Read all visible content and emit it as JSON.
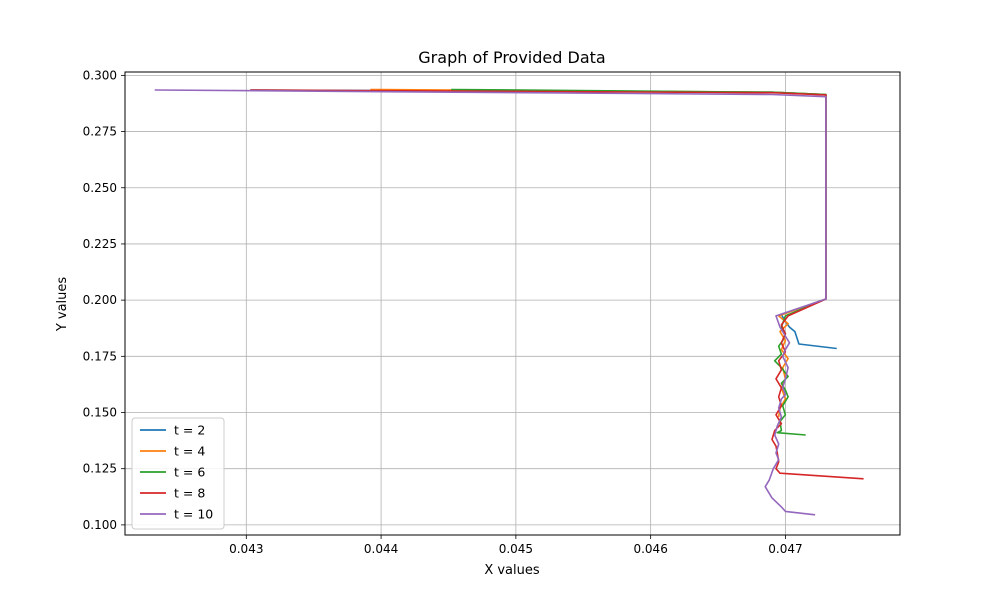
{
  "chart_data": {
    "type": "line",
    "title": "Graph of Provided Data",
    "xlabel": "X values",
    "ylabel": "Y values",
    "xlim": [
      0.0421,
      0.04785
    ],
    "ylim": [
      0.0955,
      0.3015
    ],
    "xticks": [
      0.043,
      0.044,
      0.045,
      0.046,
      0.047
    ],
    "xtick_labels": [
      "0.043",
      "0.044",
      "0.045",
      "0.046",
      "0.047"
    ],
    "yticks": [
      0.1,
      0.125,
      0.15,
      0.175,
      0.2,
      0.225,
      0.25,
      0.275,
      0.3
    ],
    "ytick_labels": [
      "0.100",
      "0.125",
      "0.150",
      "0.175",
      "0.200",
      "0.225",
      "0.250",
      "0.275",
      "0.300"
    ],
    "grid": true,
    "legend_position": "lower-left",
    "series": [
      {
        "name": "t = 2",
        "color": "#1f77b4",
        "points": [
          [
            0.04303,
            0.2935
          ],
          [
            0.0469,
            0.2925
          ],
          [
            0.0473,
            0.2915
          ],
          [
            0.0473,
            0.2005
          ],
          [
            0.04697,
            0.1935
          ],
          [
            0.047,
            0.1905
          ],
          [
            0.04703,
            0.188
          ],
          [
            0.04707,
            0.186
          ],
          [
            0.0471,
            0.1805
          ],
          [
            0.04738,
            0.1785
          ]
        ]
      },
      {
        "name": "t = 4",
        "color": "#ff7f0e",
        "points": [
          [
            0.04392,
            0.2937
          ],
          [
            0.0469,
            0.2925
          ],
          [
            0.0473,
            0.2915
          ],
          [
            0.0473,
            0.2005
          ],
          [
            0.04695,
            0.193
          ],
          [
            0.04702,
            0.1895
          ],
          [
            0.04696,
            0.186
          ],
          [
            0.047,
            0.182
          ],
          [
            0.04697,
            0.178
          ],
          [
            0.04702,
            0.174
          ],
          [
            0.04698,
            0.17
          ],
          [
            0.047,
            0.165
          ],
          [
            0.04697,
            0.161
          ],
          [
            0.047,
            0.156
          ],
          [
            0.04696,
            0.152
          ],
          [
            0.04695,
            0.148
          ]
        ]
      },
      {
        "name": "t = 6",
        "color": "#2ca02c",
        "points": [
          [
            0.04452,
            0.2937
          ],
          [
            0.0469,
            0.2925
          ],
          [
            0.0473,
            0.2915
          ],
          [
            0.0473,
            0.2005
          ],
          [
            0.047,
            0.193
          ],
          [
            0.04697,
            0.188
          ],
          [
            0.047,
            0.185
          ],
          [
            0.04698,
            0.182
          ],
          [
            0.04695,
            0.1795
          ],
          [
            0.04697,
            0.176
          ],
          [
            0.04692,
            0.173
          ],
          [
            0.04697,
            0.17
          ],
          [
            0.04702,
            0.166
          ],
          [
            0.04697,
            0.163
          ],
          [
            0.047,
            0.16
          ],
          [
            0.04702,
            0.157
          ],
          [
            0.04698,
            0.153
          ],
          [
            0.047,
            0.149
          ],
          [
            0.04696,
            0.146
          ],
          [
            0.04697,
            0.142
          ],
          [
            0.04694,
            0.141
          ],
          [
            0.04715,
            0.14
          ]
        ]
      },
      {
        "name": "t = 8",
        "color": "#d62728",
        "points": [
          [
            0.04303,
            0.2935
          ],
          [
            0.0469,
            0.2923
          ],
          [
            0.0473,
            0.2913
          ],
          [
            0.0473,
            0.2005
          ],
          [
            0.04702,
            0.193
          ],
          [
            0.04697,
            0.189
          ],
          [
            0.047,
            0.185
          ],
          [
            0.04697,
            0.181
          ],
          [
            0.047,
            0.177
          ],
          [
            0.04695,
            0.173
          ],
          [
            0.04697,
            0.169
          ],
          [
            0.04693,
            0.165
          ],
          [
            0.04697,
            0.161
          ],
          [
            0.04695,
            0.157
          ],
          [
            0.04697,
            0.153
          ],
          [
            0.04693,
            0.149
          ],
          [
            0.04697,
            0.145
          ],
          [
            0.04692,
            0.142
          ],
          [
            0.0469,
            0.138
          ],
          [
            0.04693,
            0.135
          ],
          [
            0.04694,
            0.132
          ],
          [
            0.04695,
            0.128
          ],
          [
            0.04693,
            0.125
          ],
          [
            0.04696,
            0.123
          ],
          [
            0.04758,
            0.1205
          ]
        ]
      },
      {
        "name": "t = 10",
        "color": "#9467bd",
        "points": [
          [
            0.04232,
            0.2935
          ],
          [
            0.0469,
            0.2915
          ],
          [
            0.0473,
            0.2905
          ],
          [
            0.0473,
            0.2005
          ],
          [
            0.04693,
            0.193
          ],
          [
            0.04696,
            0.188
          ],
          [
            0.047,
            0.184
          ],
          [
            0.04703,
            0.181
          ],
          [
            0.047,
            0.178
          ],
          [
            0.04698,
            0.175
          ],
          [
            0.04702,
            0.17
          ],
          [
            0.047,
            0.165
          ],
          [
            0.04698,
            0.161
          ],
          [
            0.047,
            0.158
          ],
          [
            0.04697,
            0.156
          ],
          [
            0.04695,
            0.152
          ],
          [
            0.04697,
            0.148
          ],
          [
            0.04694,
            0.144
          ],
          [
            0.04692,
            0.14
          ],
          [
            0.04695,
            0.136
          ],
          [
            0.04693,
            0.132
          ],
          [
            0.04695,
            0.129
          ],
          [
            0.04691,
            0.125
          ],
          [
            0.04688,
            0.12
          ],
          [
            0.04685,
            0.117
          ],
          [
            0.0469,
            0.112
          ],
          [
            0.04697,
            0.108
          ],
          [
            0.047,
            0.106
          ],
          [
            0.04722,
            0.1045
          ]
        ]
      }
    ]
  }
}
